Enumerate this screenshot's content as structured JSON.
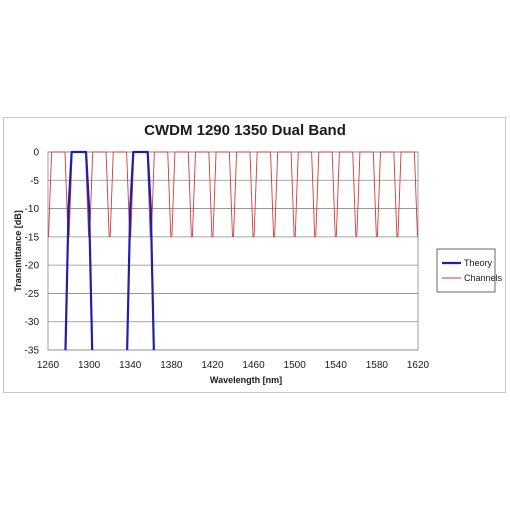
{
  "chart_data": {
    "type": "line",
    "title": "CWDM 1290 1350 Dual Band",
    "xlabel": "Wavelength [nm]",
    "ylabel": "Transmittance [dB]",
    "xlim": [
      1260,
      1620
    ],
    "ylim": [
      -35,
      0
    ],
    "xticks": [
      1260,
      1300,
      1340,
      1380,
      1420,
      1460,
      1500,
      1540,
      1580,
      1620
    ],
    "yticks": [
      0,
      -5,
      -10,
      -15,
      -20,
      -25,
      -30,
      -35
    ],
    "grid": "horizontal",
    "legend_position": "right",
    "series": [
      {
        "name": "Theory",
        "color": "#1f1fa8",
        "segments": [
          {
            "x": [
              1277,
              1280,
              1283,
              1297,
              1300,
              1303
            ],
            "y": [
              -35,
              -10,
              0,
              0,
              -10,
              -35
            ]
          },
          {
            "x": [
              1337,
              1340,
              1343,
              1357,
              1360,
              1363
            ],
            "y": [
              -35,
              -10,
              0,
              0,
              -10,
              -35
            ]
          }
        ]
      },
      {
        "name": "Channels",
        "color": "#d23c3c",
        "channel_centers": [
          1270,
          1290,
          1310,
          1330,
          1350,
          1370,
          1390,
          1410,
          1430,
          1450,
          1470,
          1490,
          1510,
          1530,
          1550,
          1570,
          1590,
          1610
        ],
        "passband_halfwidth": 6.5,
        "edge_width": 3,
        "floor": -15
      }
    ]
  }
}
